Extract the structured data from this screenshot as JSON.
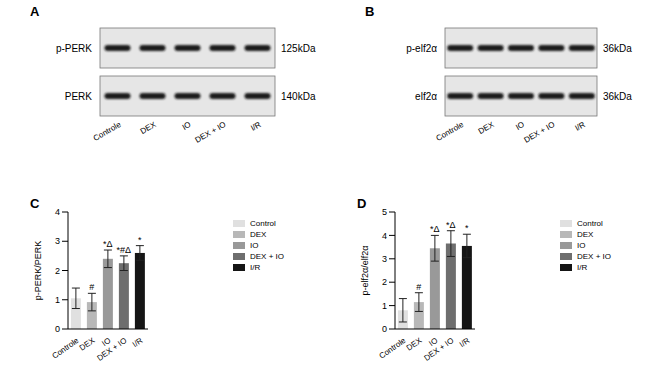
{
  "blots": [
    {
      "panel": "A",
      "lanes": [
        "Controle",
        "DEX",
        "IO",
        "DEX + IO",
        "I/R"
      ],
      "rows": [
        {
          "label": "p-PERK",
          "size": "125kDa"
        },
        {
          "label": "PERK",
          "size": "140kDa"
        }
      ]
    },
    {
      "panel": "B",
      "lanes": [
        "Controle",
        "DEX",
        "IO",
        "DEX + IO",
        "I/R"
      ],
      "rows": [
        {
          "label": "p-elf2α",
          "size": "36kDa"
        },
        {
          "label": "elf2α",
          "size": "36kDa"
        }
      ]
    }
  ],
  "chart_data": [
    {
      "panel": "C",
      "type": "bar",
      "categories": [
        "Controle",
        "DEX",
        "IO",
        "DEX + IO",
        "I/R"
      ],
      "values": [
        1.05,
        0.92,
        2.4,
        2.25,
        2.6
      ],
      "errors": [
        0.35,
        0.3,
        0.3,
        0.25,
        0.25
      ],
      "annotations": [
        null,
        "#",
        "*Δ",
        "*#Δ",
        "*"
      ],
      "colors": [
        "#e0e0e0",
        "#b8b8b8",
        "#999999",
        "#6e6e6e",
        "#151515"
      ],
      "y_label": "p-PERK/PERK",
      "ylim": [
        0,
        4
      ],
      "yticks": [
        0,
        1,
        2,
        3,
        4
      ],
      "legend": "right",
      "legend_labels": [
        "Control",
        "DEX",
        "IO",
        "DEX + IO",
        "I/R"
      ]
    },
    {
      "panel": "D",
      "type": "bar",
      "categories": [
        "Controle",
        "DEX",
        "IO",
        "DEX + IO",
        "I/R"
      ],
      "values": [
        0.8,
        1.15,
        3.45,
        3.65,
        3.55
      ],
      "errors": [
        0.5,
        0.4,
        0.55,
        0.55,
        0.5
      ],
      "annotations": [
        null,
        "#",
        "*Δ",
        "*Δ",
        "*"
      ],
      "colors": [
        "#e0e0e0",
        "#b8b8b8",
        "#999999",
        "#6e6e6e",
        "#151515"
      ],
      "y_label": "p-elf2α/elf2α",
      "ylim": [
        0,
        5
      ],
      "yticks": [
        0,
        1,
        2,
        3,
        4,
        5
      ],
      "legend": "right",
      "legend_labels": [
        "Control",
        "DEX",
        "IO",
        "DEX + IO",
        "I/R"
      ]
    }
  ]
}
